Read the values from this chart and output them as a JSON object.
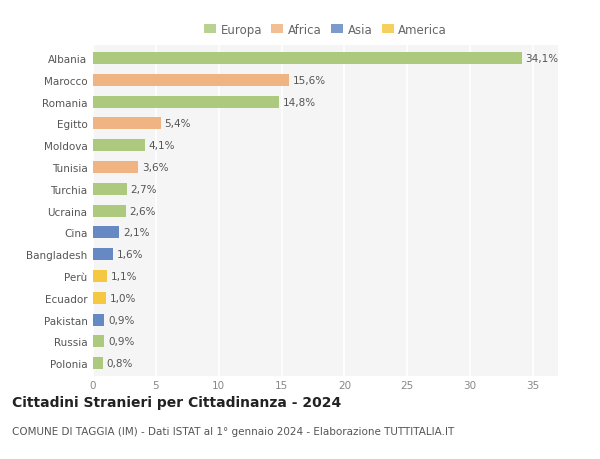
{
  "categories": [
    "Albania",
    "Marocco",
    "Romania",
    "Egitto",
    "Moldova",
    "Tunisia",
    "Turchia",
    "Ucraina",
    "Cina",
    "Bangladesh",
    "Perù",
    "Ecuador",
    "Pakistan",
    "Russia",
    "Polonia"
  ],
  "values": [
    34.1,
    15.6,
    14.8,
    5.4,
    4.1,
    3.6,
    2.7,
    2.6,
    2.1,
    1.6,
    1.1,
    1.0,
    0.9,
    0.9,
    0.8
  ],
  "labels": [
    "34,1%",
    "15,6%",
    "14,8%",
    "5,4%",
    "4,1%",
    "3,6%",
    "2,7%",
    "2,6%",
    "2,1%",
    "1,6%",
    "1,1%",
    "1,0%",
    "0,9%",
    "0,9%",
    "0,8%"
  ],
  "continents": [
    "Europa",
    "Africa",
    "Europa",
    "Africa",
    "Europa",
    "Africa",
    "Europa",
    "Europa",
    "Asia",
    "Asia",
    "America",
    "America",
    "Asia",
    "Europa",
    "Europa"
  ],
  "continent_colors": {
    "Europa": "#adc97e",
    "Africa": "#f0b482",
    "Asia": "#6688c3",
    "America": "#f5c842"
  },
  "legend_items": [
    "Europa",
    "Africa",
    "Asia",
    "America"
  ],
  "title": "Cittadini Stranieri per Cittadinanza - 2024",
  "subtitle": "COMUNE DI TAGGIA (IM) - Dati ISTAT al 1° gennaio 2024 - Elaborazione TUTTITALIA.IT",
  "xlim": [
    0,
    37
  ],
  "xticks": [
    0,
    5,
    10,
    15,
    20,
    25,
    30,
    35
  ],
  "plot_bg_color": "#f5f5f5",
  "fig_bg_color": "#ffffff",
  "grid_color": "#ffffff",
  "bar_height": 0.55,
  "title_fontsize": 10,
  "subtitle_fontsize": 7.5,
  "label_fontsize": 7.5,
  "tick_fontsize": 7.5,
  "legend_fontsize": 8.5
}
